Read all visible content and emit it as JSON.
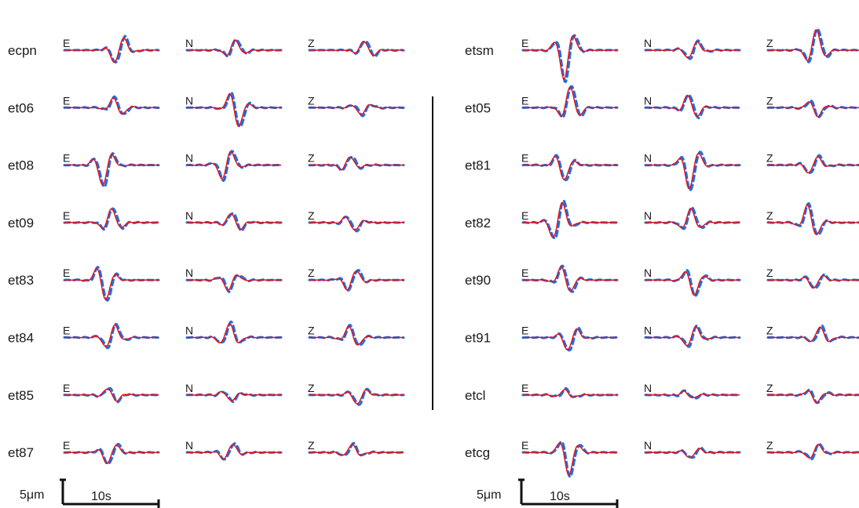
{
  "chart_data": {
    "type": "line",
    "series_styles": {
      "observed": {
        "color": "#1f6fe0",
        "style": "dashed"
      },
      "synthetic": {
        "color": "#e0141e",
        "style": "solid"
      }
    },
    "panels": [
      {
        "stations": [
          {
            "name": "ecpn",
            "traces": [
              {
                "comp": "E",
                "amp": 0.9,
                "phase": 0.58
              },
              {
                "comp": "N",
                "amp": 0.6,
                "phase": 0.5
              },
              {
                "comp": "Z",
                "amp": 0.55,
                "phase": 0.6
              }
            ]
          },
          {
            "name": "et06",
            "traces": [
              {
                "comp": "E",
                "amp": 0.6,
                "phase": 0.55
              },
              {
                "comp": "N",
                "amp": 1.2,
                "phase": 0.52
              },
              {
                "comp": "Z",
                "amp": 0.4,
                "phase": 0.55
              }
            ]
          },
          {
            "name": "et08",
            "traces": [
              {
                "comp": "E",
                "amp": 1.2,
                "phase": 0.42
              },
              {
                "comp": "N",
                "amp": 1.0,
                "phase": 0.42
              },
              {
                "comp": "Z",
                "amp": 0.5,
                "phase": 0.42
              }
            ]
          },
          {
            "name": "et09",
            "traces": [
              {
                "comp": "E",
                "amp": 0.8,
                "phase": 0.5
              },
              {
                "comp": "N",
                "amp": 0.6,
                "phase": 0.5
              },
              {
                "comp": "Z",
                "amp": 0.5,
                "phase": 0.45
              }
            ]
          },
          {
            "name": "et83",
            "traces": [
              {
                "comp": "E",
                "amp": 1.2,
                "phase": 0.42
              },
              {
                "comp": "N",
                "amp": 0.6,
                "phase": 0.45
              },
              {
                "comp": "Z",
                "amp": 0.7,
                "phase": 0.45
              }
            ]
          },
          {
            "name": "et84",
            "traces": [
              {
                "comp": "E",
                "amp": 0.8,
                "phase": 0.5
              },
              {
                "comp": "N",
                "amp": 0.8,
                "phase": 0.45
              },
              {
                "comp": "Z",
                "amp": 0.7,
                "phase": 0.45
              }
            ]
          },
          {
            "name": "et85",
            "traces": [
              {
                "comp": "E",
                "amp": 0.45,
                "phase": 0.5
              },
              {
                "comp": "N",
                "amp": 0.35,
                "phase": 0.45
              },
              {
                "comp": "Z",
                "amp": 0.55,
                "phase": 0.52
              }
            ]
          },
          {
            "name": "et87",
            "traces": [
              {
                "comp": "E",
                "amp": 0.7,
                "phase": 0.48
              },
              {
                "comp": "N",
                "amp": 0.55,
                "phase": 0.45
              },
              {
                "comp": "Z",
                "amp": 0.45,
                "phase": 0.45
              }
            ]
          }
        ],
        "scale_bar": {
          "amplitude_label": "5μm",
          "time_label": "10s"
        }
      },
      {
        "stations": [
          {
            "name": "etsm",
            "traces": [
              {
                "comp": "E",
                "amp": 1.7,
                "phase": 0.45
              },
              {
                "comp": "N",
                "amp": 0.6,
                "phase": 0.5
              },
              {
                "comp": "Z",
                "amp": 1.2,
                "phase": 0.5
              }
            ]
          },
          {
            "name": "et05",
            "traces": [
              {
                "comp": "E",
                "amp": 1.2,
                "phase": 0.5
              },
              {
                "comp": "N",
                "amp": 0.8,
                "phase": 0.48
              },
              {
                "comp": "Z",
                "amp": 0.55,
                "phase": 0.5
              }
            ]
          },
          {
            "name": "et81",
            "traces": [
              {
                "comp": "E",
                "amp": 0.9,
                "phase": 0.42
              },
              {
                "comp": "N",
                "amp": 1.4,
                "phase": 0.48
              },
              {
                "comp": "Z",
                "amp": 0.6,
                "phase": 0.48
              }
            ]
          },
          {
            "name": "et82",
            "traces": [
              {
                "comp": "E",
                "amp": 1.3,
                "phase": 0.38
              },
              {
                "comp": "N",
                "amp": 0.8,
                "phase": 0.48
              },
              {
                "comp": "Z",
                "amp": 1.1,
                "phase": 0.45
              }
            ]
          },
          {
            "name": "et90",
            "traces": [
              {
                "comp": "E",
                "amp": 0.9,
                "phase": 0.45
              },
              {
                "comp": "N",
                "amp": 0.9,
                "phase": 0.5
              },
              {
                "comp": "Z",
                "amp": 0.5,
                "phase": 0.5
              }
            ]
          },
          {
            "name": "et91",
            "traces": [
              {
                "comp": "E",
                "amp": 0.8,
                "phase": 0.5
              },
              {
                "comp": "N",
                "amp": 0.7,
                "phase": 0.5
              },
              {
                "comp": "Z",
                "amp": 0.6,
                "phase": 0.55
              }
            ]
          },
          {
            "name": "etcl",
            "traces": [
              {
                "comp": "E",
                "amp": 0.3,
                "phase": 0.45
              },
              {
                "comp": "N",
                "amp": 0.25,
                "phase": 0.45
              },
              {
                "comp": "Z",
                "amp": 0.45,
                "phase": 0.5
              }
            ]
          },
          {
            "name": "etcg",
            "traces": [
              {
                "comp": "E",
                "amp": 1.3,
                "phase": 0.48
              },
              {
                "comp": "N",
                "amp": 0.35,
                "phase": 0.5
              },
              {
                "comp": "Z",
                "amp": 0.5,
                "phase": 0.5
              }
            ]
          }
        ],
        "scale_bar": {
          "amplitude_label": "5μm",
          "time_label": "10s"
        }
      }
    ]
  }
}
